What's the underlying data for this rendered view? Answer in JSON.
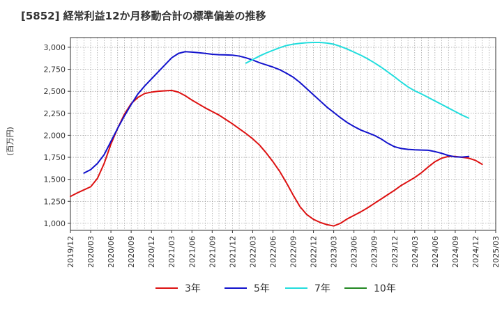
{
  "chart_data": {
    "type": "line",
    "title": "[5852]  経常利益12か月移動合計の標準偏差の推移",
    "ylabel": "(百万円)",
    "xlabel": "",
    "ylim": [
      920,
      3110
    ],
    "yticks": [
      1000,
      1250,
      1500,
      1750,
      2000,
      2250,
      2500,
      2750,
      3000
    ],
    "ytick_labels": [
      "1,000",
      "1,250",
      "1,500",
      "1,750",
      "2,000",
      "2,250",
      "2,500",
      "2,750",
      "3,000"
    ],
    "xticks": [
      "2019/12",
      "2020/03",
      "2020/06",
      "2020/09",
      "2020/12",
      "2021/03",
      "2021/06",
      "2021/09",
      "2021/12",
      "2022/03",
      "2022/06",
      "2022/09",
      "2022/12",
      "2023/03",
      "2023/06",
      "2023/09",
      "2023/12",
      "2024/03",
      "2024/06",
      "2024/09",
      "2024/12",
      "2025/03"
    ],
    "grid": true,
    "legend_position": "bottom",
    "series": [
      {
        "name": "3年",
        "color": "#dd1111",
        "start": "2019/12",
        "values": [
          1305,
          1345,
          1380,
          1415,
          1510,
          1680,
          1900,
          2080,
          2240,
          2360,
          2430,
          2475,
          2490,
          2500,
          2505,
          2510,
          2490,
          2450,
          2400,
          2355,
          2310,
          2270,
          2230,
          2180,
          2130,
          2075,
          2020,
          1960,
          1890,
          1800,
          1700,
          1590,
          1460,
          1320,
          1190,
          1100,
          1045,
          1010,
          985,
          970,
          1000,
          1050,
          1090,
          1130,
          1175,
          1225,
          1275,
          1325,
          1375,
          1430,
          1475,
          1520,
          1575,
          1640,
          1700,
          1740,
          1760,
          1760,
          1750,
          1740,
          1715,
          1670
        ]
      },
      {
        "name": "5年",
        "color": "#1111cc",
        "start": "2020/02",
        "values": [
          1570,
          1610,
          1680,
          1780,
          1930,
          2080,
          2220,
          2350,
          2470,
          2560,
          2640,
          2720,
          2800,
          2880,
          2930,
          2950,
          2945,
          2938,
          2930,
          2920,
          2915,
          2913,
          2910,
          2900,
          2880,
          2855,
          2825,
          2800,
          2775,
          2745,
          2705,
          2660,
          2600,
          2530,
          2460,
          2390,
          2320,
          2260,
          2200,
          2145,
          2100,
          2060,
          2030,
          2000,
          1960,
          1910,
          1870,
          1850,
          1840,
          1835,
          1832,
          1830,
          1815,
          1795,
          1770,
          1755,
          1752,
          1760
        ]
      },
      {
        "name": "7年",
        "color": "#22dddd",
        "start": "2022/02",
        "values": [
          2820,
          2860,
          2900,
          2935,
          2965,
          2995,
          3020,
          3035,
          3045,
          3052,
          3055,
          3055,
          3048,
          3035,
          3010,
          2980,
          2945,
          2910,
          2870,
          2825,
          2775,
          2720,
          2665,
          2605,
          2550,
          2505,
          2470,
          2430,
          2390,
          2350,
          2310,
          2270,
          2230,
          2195
        ]
      },
      {
        "name": "10年",
        "color": "#228822",
        "start": "",
        "values": []
      }
    ]
  }
}
